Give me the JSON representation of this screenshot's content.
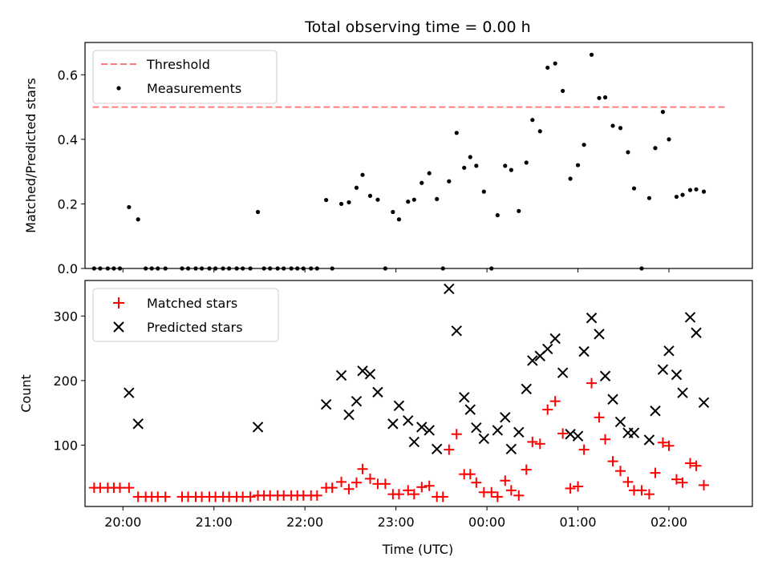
{
  "chart_data": [
    {
      "type": "scatter",
      "title": "Total observing time = 0.00 h",
      "xlabel": "",
      "ylabel": "Matched/Predicted stars",
      "xlim": [
        "19:35",
        "02:55"
      ],
      "ylim": [
        0,
        0.7
      ],
      "yticks": [
        "0.0",
        "0.2",
        "0.4",
        "0.6"
      ],
      "grid": false,
      "legend": {
        "position": "top-left",
        "entries": [
          {
            "label": "Threshold",
            "marker": "dashed-line",
            "color": "#ff7b7b"
          },
          {
            "label": "Measurements",
            "marker": "dot",
            "color": "#000000"
          }
        ]
      },
      "threshold": {
        "name": "Threshold",
        "y": 0.5,
        "x": [
          "19:40",
          "02:38"
        ],
        "color": "#ff7b7b"
      },
      "series": [
        {
          "name": "Measurements",
          "color": "#000000",
          "points": [
            [
              "19:41",
              0
            ],
            [
              "19:45",
              0
            ],
            [
              "19:50",
              0
            ],
            [
              "19:54",
              0
            ],
            [
              "19:58",
              0
            ],
            [
              "20:04",
              0.19
            ],
            [
              "20:10",
              0.152
            ],
            [
              "20:15",
              0
            ],
            [
              "20:19",
              0
            ],
            [
              "20:23",
              0
            ],
            [
              "20:28",
              0
            ],
            [
              "20:39",
              0
            ],
            [
              "20:43",
              0
            ],
            [
              "20:48",
              0
            ],
            [
              "20:52",
              0
            ],
            [
              "20:57",
              0
            ],
            [
              "21:01",
              0
            ],
            [
              "21:06",
              0
            ],
            [
              "21:10",
              0
            ],
            [
              "21:15",
              0
            ],
            [
              "21:19",
              0
            ],
            [
              "21:24",
              0
            ],
            [
              "21:29",
              0.175
            ],
            [
              "21:33",
              0
            ],
            [
              "21:37",
              0
            ],
            [
              "21:42",
              0
            ],
            [
              "21:46",
              0
            ],
            [
              "21:51",
              0
            ],
            [
              "21:55",
              0
            ],
            [
              "21:59",
              0
            ],
            [
              "22:04",
              0
            ],
            [
              "22:08",
              0
            ],
            [
              "22:14",
              0.212
            ],
            [
              "22:18",
              0
            ],
            [
              "22:24",
              0.2
            ],
            [
              "22:29",
              0.205
            ],
            [
              "22:34",
              0.25
            ],
            [
              "22:38",
              0.29
            ],
            [
              "22:43",
              0.225
            ],
            [
              "22:48",
              0.213
            ],
            [
              "22:53",
              0
            ],
            [
              "22:58",
              0.175
            ],
            [
              "23:02",
              0.152
            ],
            [
              "23:08",
              0.207
            ],
            [
              "23:12",
              0.213
            ],
            [
              "23:17",
              0.265
            ],
            [
              "23:22",
              0.295
            ],
            [
              "23:27",
              0.215
            ],
            [
              "23:31",
              0
            ],
            [
              "23:35",
              0.27
            ],
            [
              "23:40",
              0.42
            ],
            [
              "23:45",
              0.312
            ],
            [
              "23:49",
              0.345
            ],
            [
              "23:53",
              0.318
            ],
            [
              "23:58",
              0.238
            ],
            [
              "00:03",
              0
            ],
            [
              "00:07",
              0.165
            ],
            [
              "00:12",
              0.318
            ],
            [
              "00:16",
              0.305
            ],
            [
              "00:21",
              0.178
            ],
            [
              "00:26",
              0.328
            ],
            [
              "00:30",
              0.46
            ],
            [
              "00:35",
              0.425
            ],
            [
              "00:40",
              0.622
            ],
            [
              "00:45",
              0.635
            ],
            [
              "00:50",
              0.55
            ],
            [
              "00:55",
              0.278
            ],
            [
              "01:00",
              0.32
            ],
            [
              "01:04",
              0.383
            ],
            [
              "01:09",
              0.662
            ],
            [
              "01:14",
              0.528
            ],
            [
              "01:18",
              0.53
            ],
            [
              "01:23",
              0.442
            ],
            [
              "01:28",
              0.435
            ],
            [
              "01:33",
              0.36
            ],
            [
              "01:37",
              0.248
            ],
            [
              "01:42",
              0
            ],
            [
              "01:47",
              0.218
            ],
            [
              "01:51",
              0.373
            ],
            [
              "01:56",
              0.485
            ],
            [
              "02:00",
              0.4
            ],
            [
              "02:05",
              0.222
            ],
            [
              "02:09",
              0.228
            ],
            [
              "02:14",
              0.243
            ],
            [
              "02:18",
              0.245
            ],
            [
              "02:23",
              0.238
            ]
          ]
        }
      ]
    },
    {
      "type": "scatter",
      "title": "",
      "xlabel": "Time (UTC)",
      "ylabel": "Count",
      "xlim": [
        "19:35",
        "02:55"
      ],
      "ylim": [
        5,
        355
      ],
      "xticks": [
        "20:00",
        "21:00",
        "22:00",
        "23:00",
        "00:00",
        "01:00",
        "02:00"
      ],
      "yticks": [
        "100",
        "200",
        "300"
      ],
      "grid": false,
      "legend": {
        "position": "top-left",
        "entries": [
          {
            "label": "Matched stars",
            "marker": "plus",
            "color": "#ff0000"
          },
          {
            "label": "Predicted stars",
            "marker": "cross",
            "color": "#000000"
          }
        ]
      },
      "series": [
        {
          "name": "Matched stars",
          "marker": "plus",
          "color": "#ff0000",
          "points": [
            [
              "19:41",
              34
            ],
            [
              "19:45",
              34
            ],
            [
              "19:50",
              34
            ],
            [
              "19:54",
              34
            ],
            [
              "19:58",
              34
            ],
            [
              "20:04",
              34
            ],
            [
              "20:10",
              20
            ],
            [
              "20:15",
              20
            ],
            [
              "20:19",
              20
            ],
            [
              "20:23",
              20
            ],
            [
              "20:28",
              20
            ],
            [
              "20:39",
              20
            ],
            [
              "20:43",
              20
            ],
            [
              "20:48",
              20
            ],
            [
              "20:52",
              20
            ],
            [
              "20:57",
              20
            ],
            [
              "21:01",
              20
            ],
            [
              "21:06",
              20
            ],
            [
              "21:10",
              20
            ],
            [
              "21:15",
              20
            ],
            [
              "21:19",
              20
            ],
            [
              "21:24",
              20
            ],
            [
              "21:29",
              22
            ],
            [
              "21:33",
              22
            ],
            [
              "21:37",
              22
            ],
            [
              "21:42",
              22
            ],
            [
              "21:46",
              22
            ],
            [
              "21:51",
              22
            ],
            [
              "21:55",
              22
            ],
            [
              "21:59",
              22
            ],
            [
              "22:04",
              22
            ],
            [
              "22:08",
              22
            ],
            [
              "22:14",
              34
            ],
            [
              "22:18",
              34
            ],
            [
              "22:24",
              43
            ],
            [
              "22:29",
              32
            ],
            [
              "22:34",
              42
            ],
            [
              "22:38",
              63
            ],
            [
              "22:43",
              48
            ],
            [
              "22:48",
              40
            ],
            [
              "22:53",
              40
            ],
            [
              "22:58",
              24
            ],
            [
              "23:02",
              24
            ],
            [
              "23:08",
              30
            ],
            [
              "23:12",
              24
            ],
            [
              "23:17",
              35
            ],
            [
              "23:22",
              37
            ],
            [
              "23:27",
              20
            ],
            [
              "23:31",
              20
            ],
            [
              "23:35",
              93
            ],
            [
              "23:40",
              117
            ],
            [
              "23:45",
              55
            ],
            [
              "23:49",
              55
            ],
            [
              "23:53",
              42
            ],
            [
              "23:58",
              27
            ],
            [
              "00:03",
              27
            ],
            [
              "00:07",
              20
            ],
            [
              "00:12",
              45
            ],
            [
              "00:16",
              30
            ],
            [
              "00:21",
              22
            ],
            [
              "00:26",
              62
            ],
            [
              "00:30",
              105
            ],
            [
              "00:35",
              102
            ],
            [
              "00:40",
              155
            ],
            [
              "00:45",
              168
            ],
            [
              "00:50",
              118
            ],
            [
              "00:55",
              33
            ],
            [
              "01:00",
              36
            ],
            [
              "01:04",
              93
            ],
            [
              "01:09",
              196
            ],
            [
              "01:14",
              143
            ],
            [
              "01:18",
              109
            ],
            [
              "01:23",
              75
            ],
            [
              "01:28",
              60
            ],
            [
              "01:33",
              43
            ],
            [
              "01:37",
              30
            ],
            [
              "01:42",
              30
            ],
            [
              "01:47",
              24
            ],
            [
              "01:51",
              57
            ],
            [
              "01:56",
              104
            ],
            [
              "02:00",
              99
            ],
            [
              "02:05",
              47
            ],
            [
              "02:09",
              42
            ],
            [
              "02:14",
              72
            ],
            [
              "02:18",
              68
            ],
            [
              "02:23",
              38
            ]
          ]
        },
        {
          "name": "Predicted stars",
          "marker": "cross",
          "color": "#000000",
          "points": [
            [
              "20:04",
              181
            ],
            [
              "20:10",
              133
            ],
            [
              "21:29",
              128
            ],
            [
              "22:14",
              163
            ],
            [
              "22:24",
              208
            ],
            [
              "22:29",
              147
            ],
            [
              "22:34",
              168
            ],
            [
              "22:38",
              215
            ],
            [
              "22:43",
              210
            ],
            [
              "22:48",
              182
            ],
            [
              "22:58",
              133
            ],
            [
              "23:02",
              161
            ],
            [
              "23:08",
              138
            ],
            [
              "23:12",
              105
            ],
            [
              "23:17",
              128
            ],
            [
              "23:22",
              123
            ],
            [
              "23:27",
              94
            ],
            [
              "23:35",
              342
            ],
            [
              "23:40",
              277
            ],
            [
              "23:45",
              174
            ],
            [
              "23:49",
              155
            ],
            [
              "23:53",
              127
            ],
            [
              "23:58",
              110
            ],
            [
              "00:07",
              123
            ],
            [
              "00:12",
              143
            ],
            [
              "00:16",
              94
            ],
            [
              "00:21",
              120
            ],
            [
              "00:26",
              187
            ],
            [
              "00:30",
              231
            ],
            [
              "00:35",
              238
            ],
            [
              "00:40",
              249
            ],
            [
              "00:45",
              265
            ],
            [
              "00:50",
              212
            ],
            [
              "00:55",
              117
            ],
            [
              "01:00",
              114
            ],
            [
              "01:04",
              245
            ],
            [
              "01:09",
              297
            ],
            [
              "01:14",
              272
            ],
            [
              "01:18",
              207
            ],
            [
              "01:23",
              171
            ],
            [
              "01:28",
              136
            ],
            [
              "01:33",
              119
            ],
            [
              "01:37",
              119
            ],
            [
              "01:47",
              108
            ],
            [
              "01:51",
              153
            ],
            [
              "01:56",
              217
            ],
            [
              "02:00",
              246
            ],
            [
              "02:05",
              209
            ],
            [
              "02:09",
              181
            ],
            [
              "02:14",
              298
            ],
            [
              "02:18",
              274
            ],
            [
              "02:23",
              166
            ]
          ]
        }
      ]
    }
  ]
}
